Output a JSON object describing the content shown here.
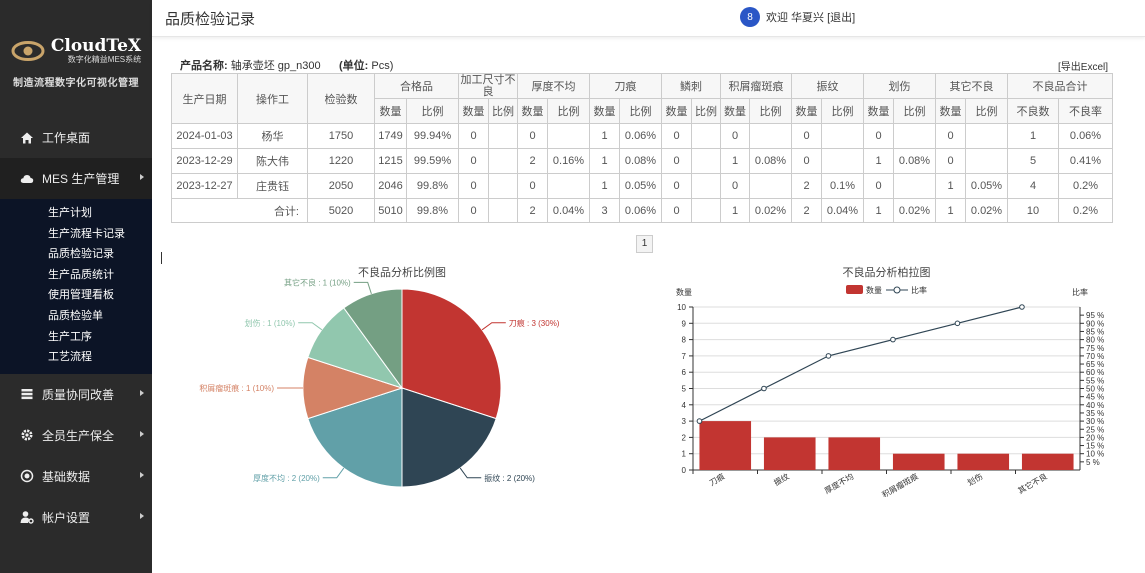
{
  "brand": {
    "name": "CloudTeX",
    "subtitle": "数字化精益MES系统",
    "system": "制造流程数字化可视化管理"
  },
  "nav": {
    "desktop": "工作桌面",
    "mes": "MES 生产管理",
    "sub": [
      "生产计划",
      "生产流程卡记录",
      "品质检验记录",
      "生产品质统计",
      "使用管理看板",
      "品质检验单",
      "生产工序",
      "工艺流程"
    ],
    "quality": "质量协同改善",
    "tpm": "全员生产保全",
    "basic": "基础数据",
    "account": "帐户设置"
  },
  "header": {
    "title": "品质检验记录",
    "welcome": "欢迎 华夏兴 [退出]"
  },
  "info": {
    "product_label": "产品名称:",
    "product_value": "轴承壶坯 gp_n300",
    "unit_label": "(单位:",
    "unit_value": "Pcs)",
    "export": "[导出Excel]"
  },
  "table": {
    "h_date": "生产日期",
    "h_worker": "操作工",
    "h_count": "检验数",
    "groups": [
      "合格品",
      "加工尺寸不良",
      "厚度不均",
      "刀痕",
      "鳞刺",
      "积屑瘤斑痕",
      "振纹",
      "划伤",
      "其它不良",
      "不良品合计"
    ],
    "sub_qty": "数量",
    "sub_ratio": "比例",
    "sub_defect_qty": "不良数",
    "sub_defect_rate": "不良率",
    "rows": [
      [
        "2024-01-03",
        "杨华",
        "1750",
        "1749",
        "99.94%",
        "0",
        "",
        "0",
        "",
        "1",
        "0.06%",
        "0",
        "",
        "0",
        "",
        "0",
        "",
        "0",
        "",
        "0",
        "",
        "1",
        "0.06%"
      ],
      [
        "2023-12-29",
        "陈大伟",
        "1220",
        "1215",
        "99.59%",
        "0",
        "",
        "2",
        "0.16%",
        "1",
        "0.08%",
        "0",
        "",
        "1",
        "0.08%",
        "0",
        "",
        "1",
        "0.08%",
        "0",
        "",
        "5",
        "0.41%"
      ],
      [
        "2023-12-27",
        "庄贵钰",
        "2050",
        "2046",
        "99.8%",
        "0",
        "",
        "0",
        "",
        "1",
        "0.05%",
        "0",
        "",
        "0",
        "",
        "2",
        "0.1%",
        "0",
        "",
        "1",
        "0.05%",
        "4",
        "0.2%"
      ]
    ],
    "total_label": "合计:",
    "total": [
      "5020",
      "5010",
      "99.8%",
      "0",
      "",
      "2",
      "0.04%",
      "3",
      "0.06%",
      "0",
      "",
      "1",
      "0.02%",
      "2",
      "0.04%",
      "1",
      "0.02%",
      "1",
      "0.02%",
      "10",
      "0.2%"
    ]
  },
  "pager": {
    "page": "1"
  },
  "chart_data": [
    {
      "type": "pie",
      "title": "不良品分析比例图",
      "slices": [
        {
          "name": "刀痕",
          "value": 3,
          "label": "刀痕 : 3 (30%)",
          "color": "#c23531"
        },
        {
          "name": "振纹",
          "value": 2,
          "label": "振纹 : 2 (20%)",
          "color": "#2f4554"
        },
        {
          "name": "厚度不均",
          "value": 2,
          "label": "厚度不均 : 2 (20%)",
          "color": "#61a0a8"
        },
        {
          "name": "积屑瘤斑痕",
          "value": 1,
          "label": "积屑瘤斑痕 : 1 (10%)",
          "color": "#d48265"
        },
        {
          "name": "划伤",
          "value": 1,
          "label": "划伤 : 1 (10%)",
          "color": "#91c7ae"
        },
        {
          "name": "其它不良",
          "value": 1,
          "label": "其它不良 : 1 (10%)",
          "color": "#749f83"
        }
      ]
    },
    {
      "type": "bar",
      "title": "不良品分析柏拉图",
      "categories": [
        "刀痕",
        "振纹",
        "厚度不均",
        "积屑瘤斑痕",
        "划伤",
        "其它不良"
      ],
      "series": [
        {
          "name": "数量",
          "type": "bar",
          "values": [
            3,
            2,
            2,
            1,
            1,
            1
          ],
          "color": "#c23531"
        },
        {
          "name": "比率",
          "type": "line",
          "values": [
            30,
            50,
            70,
            80,
            90,
            100
          ],
          "color": "#2f4554"
        }
      ],
      "ylabel": "数量",
      "ylabel_right": "比率",
      "ylim": [
        0,
        10
      ],
      "ylim_right": [
        0,
        100
      ],
      "yticks": [
        "0",
        "1",
        "2",
        "3",
        "4",
        "5",
        "6",
        "7",
        "8",
        "9",
        "10"
      ],
      "yticks_right": [
        "5 %",
        "10 %",
        "15 %",
        "20 %",
        "25 %",
        "30 %",
        "35 %",
        "40 %",
        "45 %",
        "50 %",
        "55 %",
        "60 %",
        "65 %",
        "70 %",
        "75 %",
        "80 %",
        "85 %",
        "90 %",
        "95 %"
      ],
      "legend_position": "top"
    }
  ]
}
